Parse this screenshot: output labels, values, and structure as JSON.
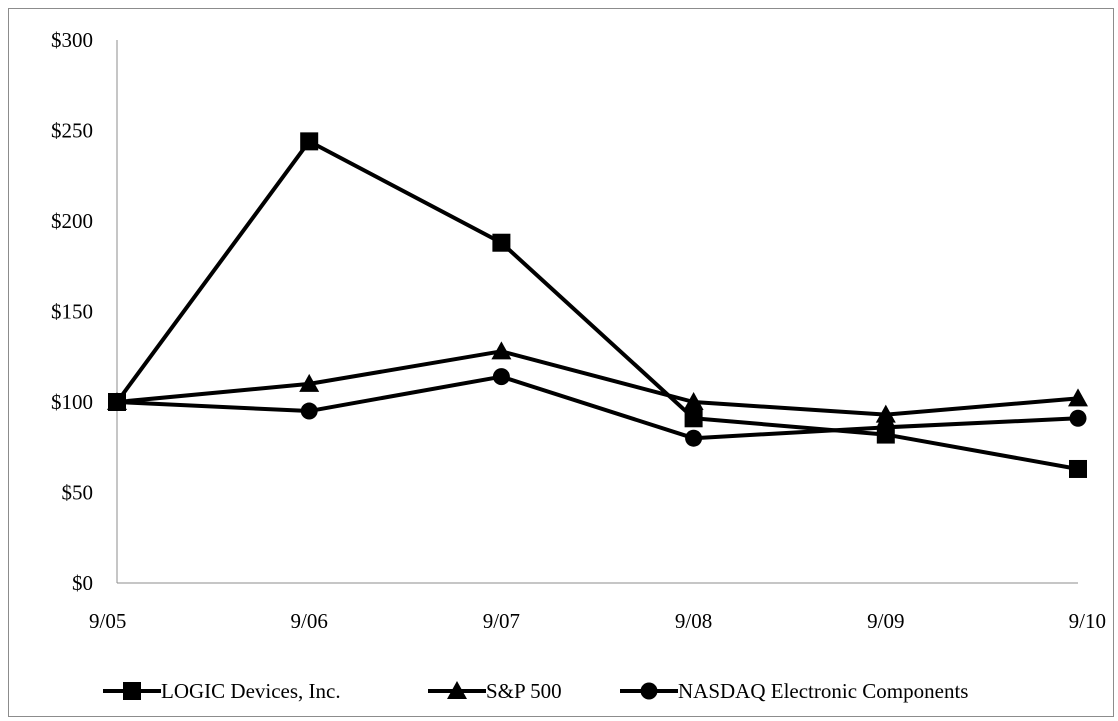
{
  "chart_data": {
    "type": "line",
    "categories": [
      "9/05",
      "9/06",
      "9/07",
      "9/08",
      "9/09",
      "9/10"
    ],
    "ylim": [
      0,
      300
    ],
    "yticks": [
      0,
      50,
      100,
      150,
      200,
      250,
      300
    ],
    "ytick_labels": [
      "$0",
      "$50",
      "$100",
      "$150",
      "$200",
      "$250",
      "$300"
    ],
    "grid": false,
    "legend_position": "bottom",
    "series": [
      {
        "name": "LOGIC Devices, Inc.",
        "marker": "square",
        "color": "#000000",
        "values": [
          100,
          244,
          188,
          91,
          82,
          63
        ]
      },
      {
        "name": "S&P 500",
        "marker": "triangle",
        "color": "#000000",
        "values": [
          100,
          110,
          128,
          100,
          93,
          102
        ]
      },
      {
        "name": "NASDAQ Electronic Components",
        "marker": "circle",
        "color": "#000000",
        "values": [
          100,
          95,
          114,
          80,
          86,
          91
        ]
      }
    ]
  }
}
